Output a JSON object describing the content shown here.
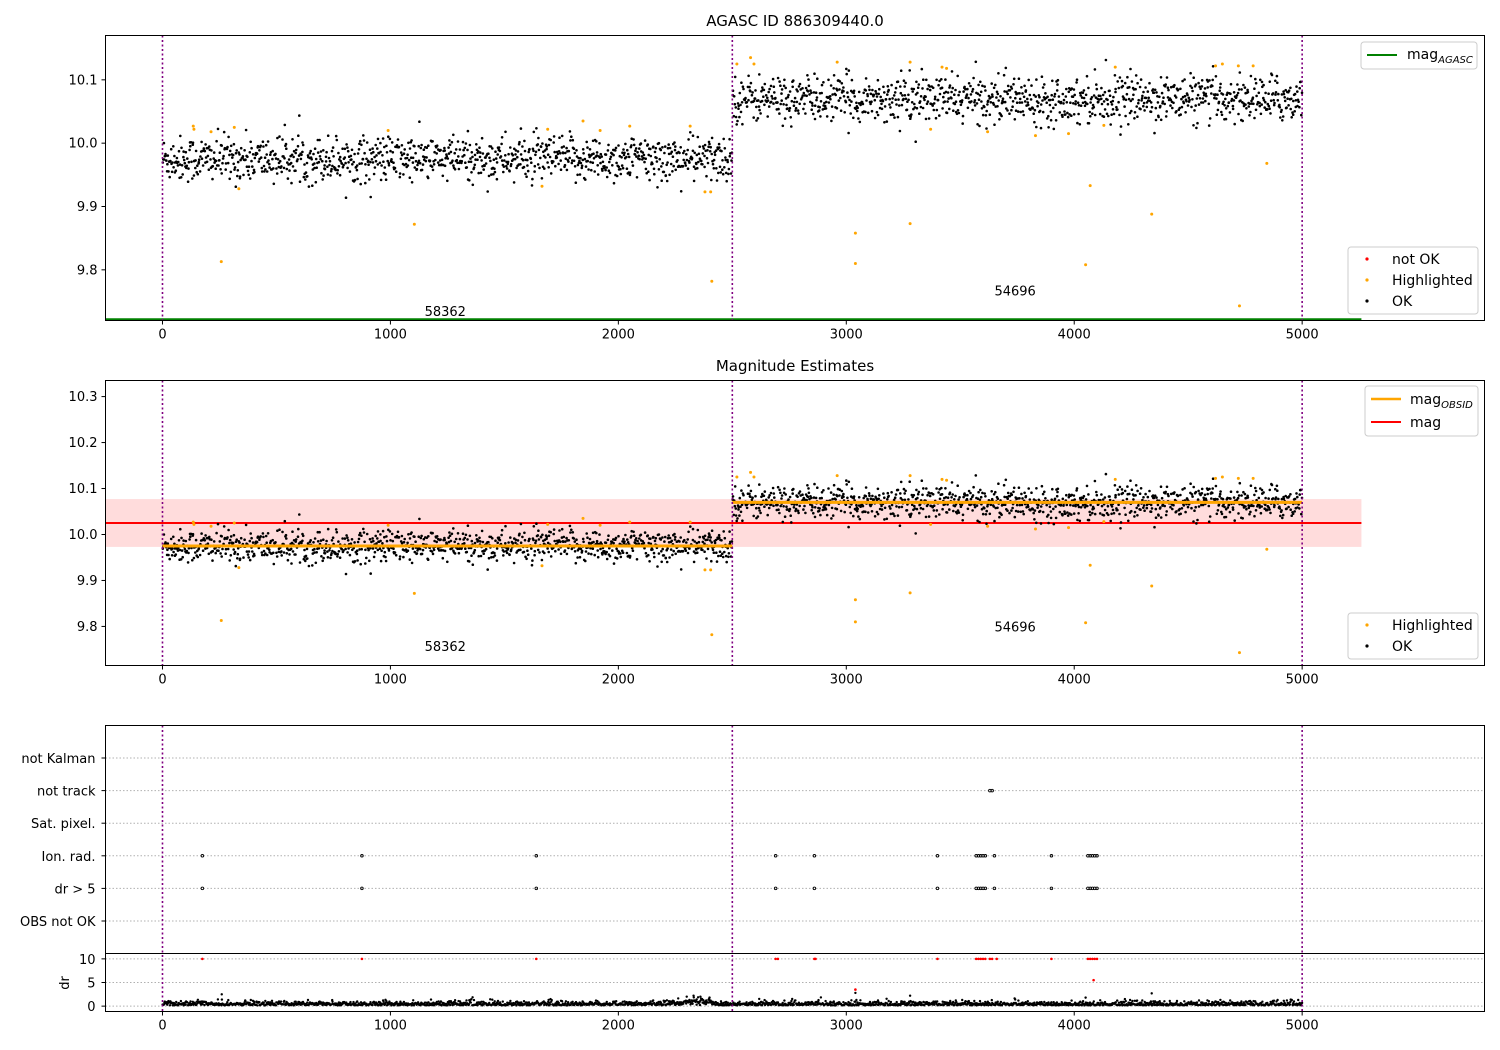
{
  "chart_data": [
    {
      "type": "scatter",
      "title": "AGASC ID 886309440.0",
      "xlim": [
        -250,
        5800
      ],
      "ylim": [
        9.72,
        10.17
      ],
      "xticks": [
        0,
        1000,
        2000,
        3000,
        4000,
        5000
      ],
      "yticks": [
        9.8,
        9.9,
        10.0,
        10.1
      ],
      "vlines": [
        0,
        2500,
        5000
      ],
      "agasc_mag": 9.722,
      "segments": [
        {
          "x0": 0,
          "x1": 2500,
          "mean": 9.975,
          "spread": 0.018
        },
        {
          "x0": 2500,
          "x1": 5000,
          "mean": 10.07,
          "spread": 0.018
        }
      ],
      "highlighted": [
        [
          135,
          10.027
        ],
        [
          138,
          10.022
        ],
        [
          213,
          10.018
        ],
        [
          258,
          9.813
        ],
        [
          315,
          10.025
        ],
        [
          335,
          9.928
        ],
        [
          990,
          10.02
        ],
        [
          1105,
          9.872
        ],
        [
          1665,
          9.932
        ],
        [
          1690,
          10.022
        ],
        [
          1845,
          10.035
        ],
        [
          1920,
          10.02
        ],
        [
          2050,
          10.027
        ],
        [
          2315,
          10.027
        ],
        [
          2380,
          9.923
        ],
        [
          2405,
          9.923
        ],
        [
          2410,
          9.782
        ],
        [
          2520,
          10.125
        ],
        [
          2580,
          10.135
        ],
        [
          2595,
          10.125
        ],
        [
          2960,
          10.128
        ],
        [
          3040,
          9.858
        ],
        [
          3040,
          9.81
        ],
        [
          3280,
          10.128
        ],
        [
          3280,
          9.873
        ],
        [
          3370,
          10.022
        ],
        [
          3420,
          10.12
        ],
        [
          3440,
          10.118
        ],
        [
          3620,
          10.018
        ],
        [
          3830,
          10.012
        ],
        [
          3975,
          10.015
        ],
        [
          4050,
          9.808
        ],
        [
          4070,
          9.933
        ],
        [
          4130,
          10.028
        ],
        [
          4180,
          10.12
        ],
        [
          4340,
          9.888
        ],
        [
          4620,
          10.122
        ],
        [
          4650,
          10.125
        ],
        [
          4720,
          10.122
        ],
        [
          4725,
          9.743
        ],
        [
          4785,
          10.122
        ],
        [
          4845,
          9.968
        ]
      ],
      "annotations": [
        {
          "text": "58362",
          "x": 1150,
          "y": 9.722
        },
        {
          "text": "54696",
          "x": 3650,
          "y": 9.755
        }
      ],
      "legend_top": [
        "mag",
        "AGASC"
      ],
      "legend_bottom": [
        "not OK",
        "Highlighted",
        "OK"
      ],
      "colors": {
        "ok": "#000000",
        "highlighted": "#ffa500",
        "not_ok": "#ff0000",
        "agasc": "#008000",
        "vline": "#800080"
      }
    },
    {
      "type": "scatter",
      "title": "Magnitude Estimates",
      "xlim": [
        -250,
        5800
      ],
      "ylim": [
        9.715,
        10.335
      ],
      "xticks": [
        0,
        1000,
        2000,
        3000,
        4000,
        5000
      ],
      "yticks": [
        9.8,
        9.9,
        10.0,
        10.1,
        10.2,
        10.3
      ],
      "mag": 10.025,
      "mag_band": [
        9.973,
        10.077
      ],
      "obsid_mag": [
        {
          "x0": 0,
          "x1": 2500,
          "value": 9.975
        },
        {
          "x0": 2500,
          "x1": 5000,
          "value": 10.07
        }
      ],
      "annotations": [
        {
          "text": "58362",
          "x": 1150,
          "y": 9.74
        },
        {
          "text": "54696",
          "x": 3650,
          "y": 9.782
        }
      ],
      "legend_top": [
        [
          "mag",
          "OBSID"
        ],
        [
          "mag",
          ""
        ]
      ],
      "legend_bottom": [
        "Highlighted",
        "OK"
      ],
      "colors": {
        "obsid": "#ffa500",
        "mag": "#ff0000",
        "band": "#ffdcdc"
      }
    },
    {
      "type": "scatter",
      "flag_rows": [
        "not Kalman",
        "not track",
        "Sat. pixel.",
        "Ion. rad.",
        "dr > 5",
        "OBS not OK"
      ],
      "flag_points": {
        "not track": [
          3630,
          3640
        ],
        "Ion. rad.": [
          175,
          875,
          1640,
          2690,
          2860,
          3400,
          3570,
          3580,
          3590,
          3600,
          3610,
          3650,
          3900,
          4060,
          4070,
          4080,
          4090,
          4100
        ],
        "dr > 5": [
          175,
          875,
          1640,
          2690,
          2860,
          3400,
          3570,
          3580,
          3590,
          3600,
          3610,
          3650,
          3900,
          4060,
          4070,
          4080,
          4090,
          4100
        ]
      },
      "dr_ylabel": "dr",
      "dr_yticks": [
        0,
        5,
        10
      ],
      "dr_ylim": [
        -0.5,
        10.5
      ],
      "dr_red": [
        [
          175,
          10
        ],
        [
          875,
          10
        ],
        [
          1640,
          10
        ],
        [
          2690,
          10
        ],
        [
          2700,
          10
        ],
        [
          2860,
          10
        ],
        [
          2865,
          10
        ],
        [
          3400,
          10
        ],
        [
          3570,
          10
        ],
        [
          3580,
          10
        ],
        [
          3590,
          10
        ],
        [
          3600,
          10
        ],
        [
          3610,
          10
        ],
        [
          3630,
          10
        ],
        [
          3640,
          10
        ],
        [
          3660,
          10
        ],
        [
          3900,
          10
        ],
        [
          4060,
          10
        ],
        [
          4070,
          10
        ],
        [
          4080,
          10
        ],
        [
          4090,
          10
        ],
        [
          4100,
          10
        ],
        [
          4085,
          5.5
        ],
        [
          3040,
          3.5
        ]
      ],
      "dr_black_extra": [
        [
          260,
          2.5
        ],
        [
          2300,
          2.0
        ],
        [
          2330,
          2.2
        ],
        [
          2360,
          2.0
        ],
        [
          2400,
          1.8
        ],
        [
          3040,
          2.8
        ],
        [
          3280,
          2.2
        ],
        [
          4340,
          2.7
        ],
        [
          4050,
          1.8
        ]
      ]
    }
  ]
}
